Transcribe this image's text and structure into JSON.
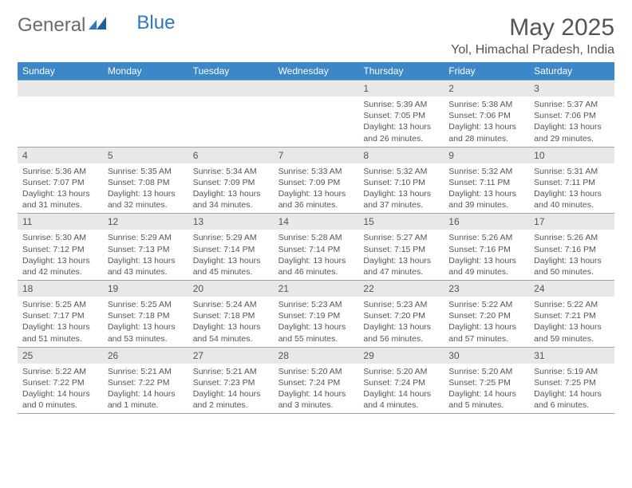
{
  "logo": {
    "text1": "General",
    "text2": "Blue"
  },
  "title": "May 2025",
  "location": "Yol, Himachal Pradesh, India",
  "colors": {
    "header_bg": "#3b87c8",
    "daynum_bg": "#e8e8e8",
    "divider": "#8fa7bd",
    "text": "#555555",
    "logo_blue": "#2a7abf"
  },
  "weekdays": [
    "Sunday",
    "Monday",
    "Tuesday",
    "Wednesday",
    "Thursday",
    "Friday",
    "Saturday"
  ],
  "weeks": [
    [
      null,
      null,
      null,
      null,
      {
        "n": "1",
        "sr": "5:39 AM",
        "ss": "7:05 PM",
        "dl": "13 hours and 26 minutes."
      },
      {
        "n": "2",
        "sr": "5:38 AM",
        "ss": "7:06 PM",
        "dl": "13 hours and 28 minutes."
      },
      {
        "n": "3",
        "sr": "5:37 AM",
        "ss": "7:06 PM",
        "dl": "13 hours and 29 minutes."
      }
    ],
    [
      {
        "n": "4",
        "sr": "5:36 AM",
        "ss": "7:07 PM",
        "dl": "13 hours and 31 minutes."
      },
      {
        "n": "5",
        "sr": "5:35 AM",
        "ss": "7:08 PM",
        "dl": "13 hours and 32 minutes."
      },
      {
        "n": "6",
        "sr": "5:34 AM",
        "ss": "7:09 PM",
        "dl": "13 hours and 34 minutes."
      },
      {
        "n": "7",
        "sr": "5:33 AM",
        "ss": "7:09 PM",
        "dl": "13 hours and 36 minutes."
      },
      {
        "n": "8",
        "sr": "5:32 AM",
        "ss": "7:10 PM",
        "dl": "13 hours and 37 minutes."
      },
      {
        "n": "9",
        "sr": "5:32 AM",
        "ss": "7:11 PM",
        "dl": "13 hours and 39 minutes."
      },
      {
        "n": "10",
        "sr": "5:31 AM",
        "ss": "7:11 PM",
        "dl": "13 hours and 40 minutes."
      }
    ],
    [
      {
        "n": "11",
        "sr": "5:30 AM",
        "ss": "7:12 PM",
        "dl": "13 hours and 42 minutes."
      },
      {
        "n": "12",
        "sr": "5:29 AM",
        "ss": "7:13 PM",
        "dl": "13 hours and 43 minutes."
      },
      {
        "n": "13",
        "sr": "5:29 AM",
        "ss": "7:14 PM",
        "dl": "13 hours and 45 minutes."
      },
      {
        "n": "14",
        "sr": "5:28 AM",
        "ss": "7:14 PM",
        "dl": "13 hours and 46 minutes."
      },
      {
        "n": "15",
        "sr": "5:27 AM",
        "ss": "7:15 PM",
        "dl": "13 hours and 47 minutes."
      },
      {
        "n": "16",
        "sr": "5:26 AM",
        "ss": "7:16 PM",
        "dl": "13 hours and 49 minutes."
      },
      {
        "n": "17",
        "sr": "5:26 AM",
        "ss": "7:16 PM",
        "dl": "13 hours and 50 minutes."
      }
    ],
    [
      {
        "n": "18",
        "sr": "5:25 AM",
        "ss": "7:17 PM",
        "dl": "13 hours and 51 minutes."
      },
      {
        "n": "19",
        "sr": "5:25 AM",
        "ss": "7:18 PM",
        "dl": "13 hours and 53 minutes."
      },
      {
        "n": "20",
        "sr": "5:24 AM",
        "ss": "7:18 PM",
        "dl": "13 hours and 54 minutes."
      },
      {
        "n": "21",
        "sr": "5:23 AM",
        "ss": "7:19 PM",
        "dl": "13 hours and 55 minutes."
      },
      {
        "n": "22",
        "sr": "5:23 AM",
        "ss": "7:20 PM",
        "dl": "13 hours and 56 minutes."
      },
      {
        "n": "23",
        "sr": "5:22 AM",
        "ss": "7:20 PM",
        "dl": "13 hours and 57 minutes."
      },
      {
        "n": "24",
        "sr": "5:22 AM",
        "ss": "7:21 PM",
        "dl": "13 hours and 59 minutes."
      }
    ],
    [
      {
        "n": "25",
        "sr": "5:22 AM",
        "ss": "7:22 PM",
        "dl": "14 hours and 0 minutes."
      },
      {
        "n": "26",
        "sr": "5:21 AM",
        "ss": "7:22 PM",
        "dl": "14 hours and 1 minute."
      },
      {
        "n": "27",
        "sr": "5:21 AM",
        "ss": "7:23 PM",
        "dl": "14 hours and 2 minutes."
      },
      {
        "n": "28",
        "sr": "5:20 AM",
        "ss": "7:24 PM",
        "dl": "14 hours and 3 minutes."
      },
      {
        "n": "29",
        "sr": "5:20 AM",
        "ss": "7:24 PM",
        "dl": "14 hours and 4 minutes."
      },
      {
        "n": "30",
        "sr": "5:20 AM",
        "ss": "7:25 PM",
        "dl": "14 hours and 5 minutes."
      },
      {
        "n": "31",
        "sr": "5:19 AM",
        "ss": "7:25 PM",
        "dl": "14 hours and 6 minutes."
      }
    ]
  ],
  "labels": {
    "sunrise": "Sunrise:",
    "sunset": "Sunset:",
    "daylight": "Daylight:"
  }
}
